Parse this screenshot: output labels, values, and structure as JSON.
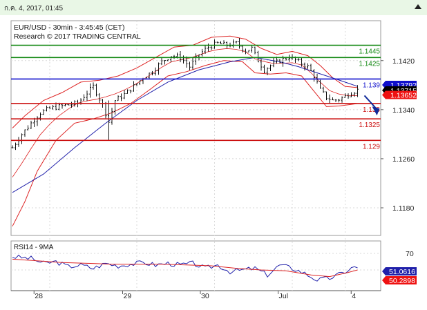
{
  "header": {
    "date_label": "ก.ค. 4, 2017, 01:45"
  },
  "colors": {
    "green_level": "#118811",
    "blue_level": "#1010cc",
    "red_level": "#cc1111",
    "ma_line": "#2020aa",
    "bollinger": "#dd2222",
    "price_bar": "#111111",
    "arrow": "#102a9a",
    "last_price_bg": "#000000",
    "blue_tag_bg": "#1010cc",
    "red_tag_bg": "#ee1111",
    "rsi_line": "#2020aa",
    "rsi_ma_line": "#dd2222",
    "rsi_tag_bg": "#2020aa",
    "rsi_ma_tag_bg": "#ee1111",
    "grid": "#d8d8d8"
  },
  "chart_data": [
    {
      "type": "candlestick",
      "title": "EUR/USD - 30min - 3:45:45 (CET)",
      "subtitle": "Research © 2017 TRADING CENTRAL",
      "y_ticks": [
        "1.1420",
        "1.1340",
        "1.1260",
        "1.1180"
      ],
      "ylim": [
        1.1135,
        1.1485
      ],
      "levels": [
        {
          "label": "1.1445",
          "value": 1.1445,
          "color": "green",
          "tag": false
        },
        {
          "label": "1.1425",
          "value": 1.1425,
          "color": "green",
          "tag": false
        },
        {
          "label": "1.139",
          "value": 1.139,
          "color": "blue",
          "tag": false
        },
        {
          "label": "1.135",
          "value": 1.135,
          "color": "red",
          "tag": false
        },
        {
          "label": "1.1325",
          "value": 1.1325,
          "color": "red",
          "tag": false
        },
        {
          "label": "1.129",
          "value": 1.129,
          "color": "red",
          "tag": false
        }
      ],
      "price_tags": [
        {
          "label": "1.13792",
          "value": 1.13792,
          "style": "blue"
        },
        {
          "label": "1.13715",
          "value": 1.13715,
          "style": "black"
        },
        {
          "label": "1.13652",
          "value": 1.13652,
          "style": "red"
        }
      ],
      "x_tick_labels": [
        "28",
        "29",
        "30",
        "Jul",
        "4"
      ],
      "close_path": [
        [
          0,
          1.1278
        ],
        [
          3,
          1.13
        ],
        [
          6,
          1.1318
        ],
        [
          9,
          1.1335
        ],
        [
          12,
          1.1342
        ],
        [
          15,
          1.1345
        ],
        [
          18,
          1.1348
        ],
        [
          21,
          1.135
        ],
        [
          23,
          1.1362
        ],
        [
          26,
          1.1378
        ],
        [
          29,
          1.1348
        ],
        [
          31,
          1.132
        ],
        [
          33,
          1.1355
        ],
        [
          36,
          1.1365
        ],
        [
          39,
          1.1378
        ],
        [
          42,
          1.1392
        ],
        [
          45,
          1.1402
        ],
        [
          48,
          1.1418
        ],
        [
          51,
          1.1428
        ],
        [
          54,
          1.1425
        ],
        [
          57,
          1.141
        ],
        [
          60,
          1.143
        ],
        [
          63,
          1.1442
        ],
        [
          66,
          1.1448
        ],
        [
          69,
          1.1445
        ],
        [
          72,
          1.1448
        ],
        [
          75,
          1.1436
        ],
        [
          77,
          1.144
        ],
        [
          79,
          1.142
        ],
        [
          81,
          1.1405
        ],
        [
          83,
          1.1412
        ],
        [
          86,
          1.142
        ],
        [
          89,
          1.1426
        ],
        [
          92,
          1.1418
        ],
        [
          95,
          1.141
        ],
        [
          97,
          1.1395
        ],
        [
          99,
          1.1372
        ],
        [
          101,
          1.136
        ],
        [
          103,
          1.1355
        ],
        [
          105,
          1.1357
        ],
        [
          107,
          1.1362
        ],
        [
          109,
          1.1368
        ],
        [
          111,
          1.1372
        ]
      ],
      "ma_path": [
        [
          0,
          1.1205
        ],
        [
          10,
          1.1235
        ],
        [
          20,
          1.1278
        ],
        [
          30,
          1.1318
        ],
        [
          40,
          1.1355
        ],
        [
          50,
          1.1385
        ],
        [
          60,
          1.1405
        ],
        [
          70,
          1.1418
        ],
        [
          78,
          1.1425
        ],
        [
          86,
          1.1418
        ],
        [
          92,
          1.141
        ],
        [
          98,
          1.14
        ],
        [
          104,
          1.139
        ],
        [
          111,
          1.1378
        ]
      ],
      "bollinger_upper": [
        [
          0,
          1.131
        ],
        [
          4,
          1.133
        ],
        [
          10,
          1.1355
        ],
        [
          16,
          1.1368
        ],
        [
          22,
          1.1385
        ],
        [
          28,
          1.1388
        ],
        [
          34,
          1.1395
        ],
        [
          40,
          1.1408
        ],
        [
          46,
          1.1425
        ],
        [
          52,
          1.1442
        ],
        [
          58,
          1.1445
        ],
        [
          64,
          1.1458
        ],
        [
          70,
          1.146
        ],
        [
          75,
          1.1455
        ],
        [
          80,
          1.144
        ],
        [
          85,
          1.143
        ],
        [
          90,
          1.1435
        ],
        [
          95,
          1.1428
        ],
        [
          99,
          1.1412
        ],
        [
          103,
          1.1392
        ],
        [
          107,
          1.1378
        ],
        [
          111,
          1.1376
        ]
      ],
      "bollinger_lower": [
        [
          0,
          1.115
        ],
        [
          4,
          1.119
        ],
        [
          8,
          1.124
        ],
        [
          14,
          1.129
        ],
        [
          20,
          1.1318
        ],
        [
          26,
          1.1325
        ],
        [
          32,
          1.1335
        ],
        [
          38,
          1.135
        ],
        [
          44,
          1.1372
        ],
        [
          50,
          1.1395
        ],
        [
          56,
          1.1402
        ],
        [
          62,
          1.1412
        ],
        [
          68,
          1.142
        ],
        [
          74,
          1.1418
        ],
        [
          78,
          1.14
        ],
        [
          83,
          1.1398
        ],
        [
          88,
          1.14
        ],
        [
          93,
          1.1395
        ],
        [
          97,
          1.137
        ],
        [
          101,
          1.1345
        ],
        [
          105,
          1.1346
        ],
        [
          111,
          1.135
        ]
      ],
      "forecast_arrow": {
        "from": [
          111,
          1.1372
        ],
        "to": [
          117,
          1.1335
        ]
      }
    },
    {
      "type": "line",
      "title": "RSI14 - 9MA",
      "y_ticks": [
        "70",
        "50"
      ],
      "ylim": [
        25,
        85
      ],
      "values_tags": [
        {
          "label": "51.0616",
          "style": "blue"
        },
        {
          "label": "50.2898",
          "style": "red"
        }
      ],
      "series": [
        {
          "values": [
            [
              0,
              66
            ],
            [
              6,
              64
            ],
            [
              10,
              58
            ],
            [
              14,
              60
            ],
            [
              18,
              54
            ],
            [
              22,
              56
            ],
            [
              26,
              52
            ],
            [
              30,
              58
            ],
            [
              34,
              55
            ],
            [
              38,
              57
            ],
            [
              42,
              59
            ],
            [
              46,
              56
            ],
            [
              50,
              58
            ],
            [
              54,
              56
            ],
            [
              58,
              58
            ],
            [
              62,
              52
            ],
            [
              66,
              56
            ],
            [
              70,
              48
            ],
            [
              74,
              50
            ],
            [
              78,
              52
            ],
            [
              82,
              44
            ],
            [
              86,
              56
            ],
            [
              90,
              52
            ],
            [
              94,
              46
            ],
            [
              98,
              38
            ],
            [
              102,
              40
            ],
            [
              106,
              46
            ],
            [
              108,
              50
            ],
            [
              110,
              54
            ],
            [
              111,
              51
            ]
          ]
        },
        {
          "values": [
            [
              0,
              63
            ],
            [
              8,
              61
            ],
            [
              16,
              59
            ],
            [
              24,
              58
            ],
            [
              32,
              57
            ],
            [
              40,
              57
            ],
            [
              48,
              57
            ],
            [
              56,
              56
            ],
            [
              64,
              55
            ],
            [
              72,
              52
            ],
            [
              80,
              50
            ],
            [
              88,
              49
            ],
            [
              96,
              44
            ],
            [
              102,
              42
            ],
            [
              108,
              47
            ],
            [
              111,
              50
            ]
          ]
        }
      ]
    }
  ]
}
